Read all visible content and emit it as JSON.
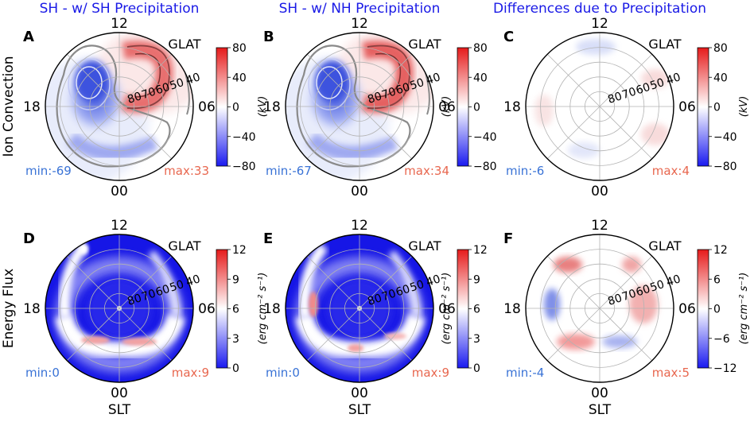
{
  "chart_data": {
    "type": "polar-contour",
    "column_titles": [
      "SH - w/ SH Precipitation",
      "SH - w/ NH Precipitation",
      "Differences due to Precipitation"
    ],
    "row_labels": [
      "Ion Convection",
      "Energy Flux"
    ],
    "radial_label": "GLAT",
    "radial_ticks": [
      "80",
      "70",
      "60",
      "50",
      "40"
    ],
    "angular_ticks": {
      "top": "12",
      "bottom": "00",
      "left": "18",
      "right": "06"
    },
    "angular_axis_label": "SLT",
    "colors": {
      "title": "#1a1ae6",
      "min": "#3a73d6",
      "max": "#e8674f",
      "grid": "#b3b3b3",
      "fluxbg": "#1616e6"
    },
    "panels": [
      {
        "letter": "A",
        "kind": "conv",
        "variant": "sh",
        "min": "min:-69",
        "max": "max:33",
        "cbar": {
          "ticks": [
            "80",
            "40",
            "0",
            "−40",
            "−80"
          ],
          "unit": "(kV)",
          "unit_side": "right"
        }
      },
      {
        "letter": "B",
        "kind": "conv",
        "variant": "nh",
        "min": "min:-67",
        "max": "max:34",
        "cbar": {
          "ticks": [
            "80",
            "40",
            "0",
            "−40",
            "−80"
          ],
          "unit": "(kV)",
          "unit_side": "left"
        }
      },
      {
        "letter": "C",
        "kind": "convdiff",
        "variant": "diff",
        "min": "min:-6",
        "max": "max:4",
        "cbar": {
          "ticks": [
            "80",
            "40",
            "0",
            "−40",
            "−80"
          ],
          "unit": "(kV)",
          "unit_side": "right"
        }
      },
      {
        "letter": "D",
        "kind": "flux",
        "variant": "sh",
        "min": "min:0",
        "max": "max:9",
        "cbar": {
          "ticks": [
            "12",
            "9",
            "6",
            "3",
            "0"
          ],
          "unit": "(erg cm⁻² s⁻¹)",
          "unit_side": "right"
        }
      },
      {
        "letter": "E",
        "kind": "flux",
        "variant": "nh",
        "min": "min:0",
        "max": "max:9",
        "cbar": {
          "ticks": [
            "12",
            "9",
            "6",
            "3",
            "0"
          ],
          "unit": "(erg cm⁻² s⁻¹)",
          "unit_side": "left"
        }
      },
      {
        "letter": "F",
        "kind": "fluxdiff",
        "variant": "diff",
        "min": "min:-4",
        "max": "max:5",
        "cbar": {
          "ticks": [
            "12",
            "6",
            "0",
            "−6",
            "−12"
          ],
          "unit": "(erg cm⁻² s⁻¹)",
          "unit_side": "right"
        }
      }
    ]
  }
}
